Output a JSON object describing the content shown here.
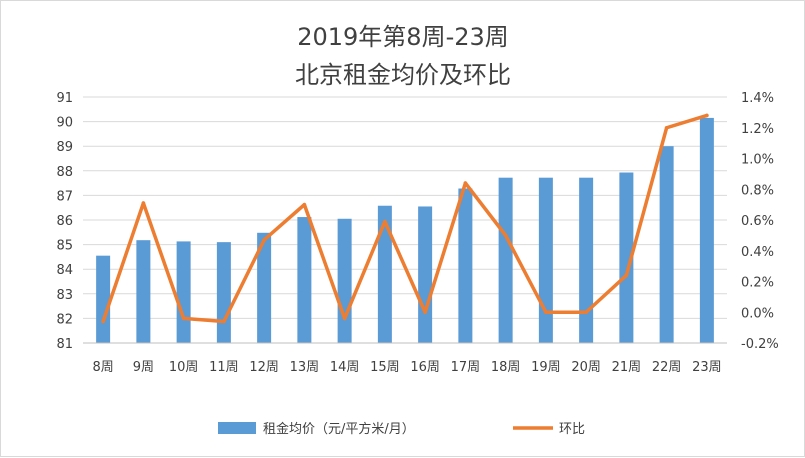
{
  "chart_data": {
    "type": "bar+line",
    "title": [
      "2019年第8周-23周",
      "北京租金均价及环比"
    ],
    "categories": [
      "8周",
      "9周",
      "10周",
      "11周",
      "12周",
      "13周",
      "14周",
      "15周",
      "16周",
      "17周",
      "18周",
      "19周",
      "20周",
      "21周",
      "22周",
      "23周"
    ],
    "series": [
      {
        "name": "租金均价（元/平方米/月）",
        "type": "bar",
        "axis": "left",
        "color": "#5b9bd5",
        "values": [
          84.55,
          85.18,
          85.13,
          85.1,
          85.48,
          86.12,
          86.05,
          86.58,
          86.55,
          87.28,
          87.72,
          87.72,
          87.72,
          87.93,
          89.0,
          90.15
        ]
      },
      {
        "name": "环比",
        "type": "line",
        "axis": "right",
        "color": "#ed7d31",
        "values": [
          -0.06,
          0.71,
          -0.04,
          -0.06,
          0.47,
          0.7,
          -0.04,
          0.59,
          0.0,
          0.84,
          0.5,
          0.0,
          0.0,
          0.24,
          1.2,
          1.28
        ]
      }
    ],
    "y_left": {
      "min": 81,
      "max": 91,
      "step": 1,
      "ticks": [
        "81",
        "82",
        "83",
        "84",
        "85",
        "86",
        "87",
        "88",
        "89",
        "90",
        "91"
      ]
    },
    "y_right": {
      "min": -0.2,
      "max": 1.4,
      "step": 0.2,
      "ticks": [
        "-0.2%",
        "0.0%",
        "0.2%",
        "0.4%",
        "0.6%",
        "0.8%",
        "1.0%",
        "1.2%",
        "1.4%"
      ]
    },
    "grid": true,
    "legend_position": "bottom"
  }
}
